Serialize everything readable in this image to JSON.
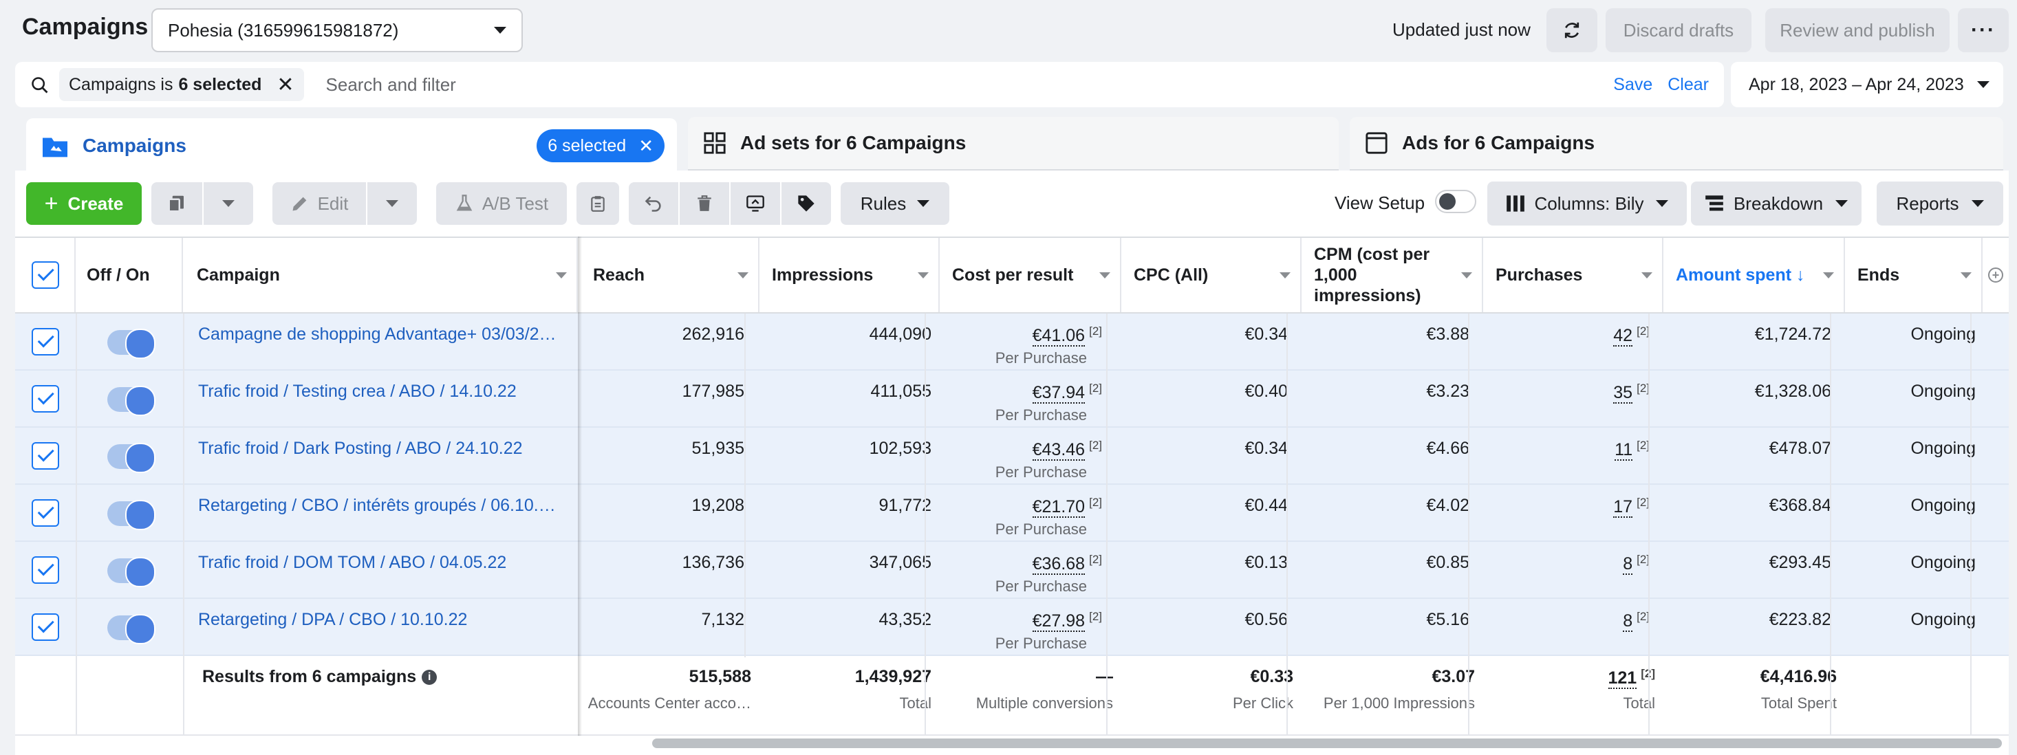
{
  "header": {
    "title": "Campaigns",
    "account": "Pohesia (316599615981872)",
    "updated": "Updated just now",
    "discard": "Discard drafts",
    "review": "Review and publish",
    "more": "···"
  },
  "filter": {
    "chip_prefix": "Campaigns is",
    "chip_value": "6 selected",
    "placeholder": "Search and filter",
    "save": "Save",
    "clear": "Clear",
    "date_range": "Apr 18, 2023 – Apr 24, 2023"
  },
  "tabs": {
    "campaigns": "Campaigns",
    "selected": "6 selected",
    "adsets": "Ad sets for 6 Campaigns",
    "ads": "Ads for 6 Campaigns"
  },
  "toolbar": {
    "create": "Create",
    "edit": "Edit",
    "ab_test": "A/B Test",
    "rules": "Rules",
    "view_setup": "View Setup",
    "columns": "Columns: Bily",
    "breakdown": "Breakdown",
    "reports": "Reports"
  },
  "columns": {
    "off_on": "Off / On",
    "campaign": "Campaign",
    "reach": "Reach",
    "impressions": "Impressions",
    "cost_per_result": "Cost per result",
    "cpc": "CPC (All)",
    "cpm": "CPM (cost per 1,000 impressions)",
    "purchases": "Purchases",
    "amount_spent": "Amount spent ↓",
    "ends": "Ends"
  },
  "rows": [
    {
      "name": "Campagne de shopping Advantage+ 03/03/2…",
      "reach": "262,916",
      "impressions": "444,090",
      "cpr": "€41.06",
      "cpr_sub": "Per Purchase",
      "cpc": "€0.34",
      "cpm": "€3.88",
      "purchases": "42",
      "spent": "€1,724.72",
      "ends": "Ongoing"
    },
    {
      "name": "Trafic froid / Testing crea / ABO / 14.10.22",
      "reach": "177,985",
      "impressions": "411,055",
      "cpr": "€37.94",
      "cpr_sub": "Per Purchase",
      "cpc": "€0.40",
      "cpm": "€3.23",
      "purchases": "35",
      "spent": "€1,328.06",
      "ends": "Ongoing"
    },
    {
      "name": "Trafic froid / Dark Posting / ABO / 24.10.22",
      "reach": "51,935",
      "impressions": "102,593",
      "cpr": "€43.46",
      "cpr_sub": "Per Purchase",
      "cpc": "€0.34",
      "cpm": "€4.66",
      "purchases": "11",
      "spent": "€478.07",
      "ends": "Ongoing"
    },
    {
      "name": "Retargeting / CBO / intérêts groupés / 06.10.…",
      "reach": "19,208",
      "impressions": "91,772",
      "cpr": "€21.70",
      "cpr_sub": "Per Purchase",
      "cpc": "€0.44",
      "cpm": "€4.02",
      "purchases": "17",
      "spent": "€368.84",
      "ends": "Ongoing"
    },
    {
      "name": "Trafic froid / DOM TOM / ABO / 04.05.22",
      "reach": "136,736",
      "impressions": "347,065",
      "cpr": "€36.68",
      "cpr_sub": "Per Purchase",
      "cpc": "€0.13",
      "cpm": "€0.85",
      "purchases": "8",
      "spent": "€293.45",
      "ends": "Ongoing"
    },
    {
      "name": "Retargeting / DPA / CBO / 10.10.22",
      "reach": "7,132",
      "impressions": "43,352",
      "cpr": "€27.98",
      "cpr_sub": "Per Purchase",
      "cpc": "€0.56",
      "cpm": "€5.16",
      "purchases": "8",
      "spent": "€223.82",
      "ends": "Ongoing"
    }
  ],
  "footnote": "[2]",
  "totals": {
    "label": "Results from 6 campaigns",
    "reach": "515,588",
    "reach_sub": "Accounts Center acco…",
    "impressions": "1,439,927",
    "impressions_sub": "Total",
    "cpr": "—",
    "cpr_sub": "Multiple conversions",
    "cpc": "€0.33",
    "cpc_sub": "Per Click",
    "cpm": "€3.07",
    "cpm_sub": "Per 1,000 Impressions",
    "purchases": "121",
    "purchases_sub": "Total",
    "spent": "€4,416.96",
    "spent_sub": "Total Spent"
  }
}
